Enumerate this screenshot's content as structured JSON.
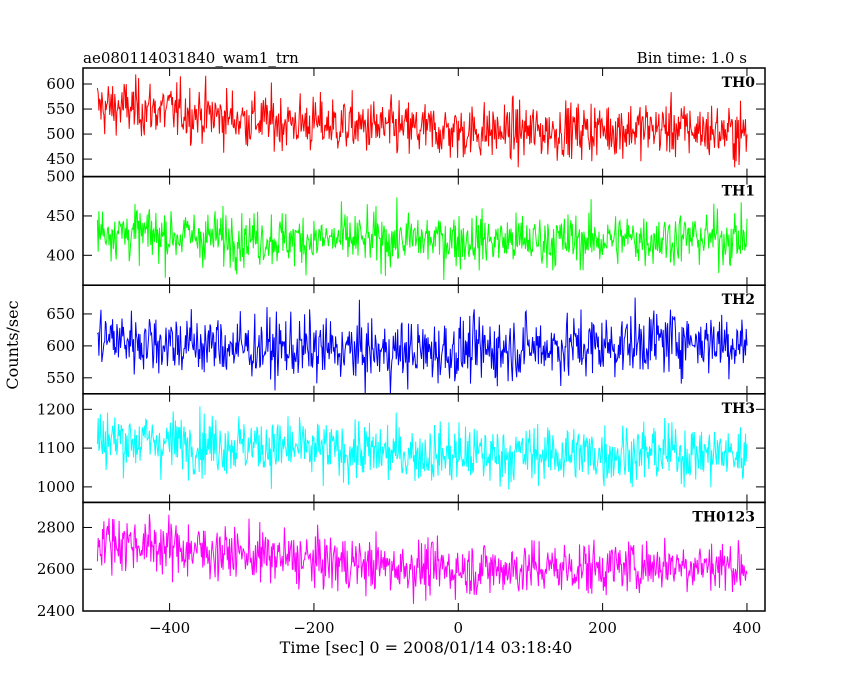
{
  "header": {
    "left_title": "ae080114031840_wam1_trn",
    "right_title": "Bin time: 1.0 s"
  },
  "chart_data": {
    "type": "line",
    "xlabel": "Time [sec] 0 = 2008/01/14 03:18:40",
    "ylabel": "Counts/sec",
    "xlim": [
      -520,
      425
    ],
    "x_ticks": [
      -400,
      -200,
      0,
      200,
      400
    ],
    "x_range": [
      -500,
      400
    ],
    "panels": [
      {
        "name": "TH0",
        "color": "#ff0000",
        "ylim": [
          415,
          632
        ],
        "y_ticks": [
          450,
          500,
          550,
          600
        ],
        "trend": [
          [
            -500,
            555
          ],
          [
            -400,
            548
          ],
          [
            -300,
            530
          ],
          [
            -200,
            520
          ],
          [
            -100,
            512
          ],
          [
            0,
            505
          ],
          [
            100,
            505
          ],
          [
            200,
            510
          ],
          [
            300,
            512
          ],
          [
            400,
            500
          ]
        ],
        "noise": 28
      },
      {
        "name": "TH1",
        "color": "#00ff00",
        "ylim": [
          362,
          500
        ],
        "y_ticks": [
          400,
          450,
          500
        ],
        "trend": [
          [
            -500,
            432
          ],
          [
            -400,
            425
          ],
          [
            -300,
            422
          ],
          [
            -200,
            420
          ],
          [
            -100,
            420
          ],
          [
            0,
            420
          ],
          [
            100,
            418
          ],
          [
            200,
            420
          ],
          [
            300,
            422
          ],
          [
            400,
            422
          ]
        ],
        "noise": 17
      },
      {
        "name": "TH2",
        "color": "#0000ff",
        "ylim": [
          525,
          695
        ],
        "y_ticks": [
          550,
          600,
          650
        ],
        "trend": [
          [
            -500,
            612
          ],
          [
            -400,
            605
          ],
          [
            -300,
            598
          ],
          [
            -200,
            595
          ],
          [
            -100,
            590
          ],
          [
            0,
            592
          ],
          [
            100,
            598
          ],
          [
            200,
            600
          ],
          [
            300,
            610
          ],
          [
            400,
            605
          ]
        ],
        "noise": 25
      },
      {
        "name": "TH3",
        "color": "#00ffff",
        "ylim": [
          960,
          1240
        ],
        "y_ticks": [
          1000,
          1100,
          1200
        ],
        "trend": [
          [
            -500,
            1125
          ],
          [
            -400,
            1115
          ],
          [
            -300,
            1108
          ],
          [
            -200,
            1095
          ],
          [
            -100,
            1088
          ],
          [
            0,
            1082
          ],
          [
            100,
            1085
          ],
          [
            200,
            1085
          ],
          [
            300,
            1088
          ],
          [
            400,
            1082
          ]
        ],
        "noise": 38
      },
      {
        "name": "TH0123",
        "color": "#ff00ff",
        "ylim": [
          2400,
          2920
        ],
        "y_ticks": [
          2400,
          2600,
          2800
        ],
        "trend": [
          [
            -500,
            2745
          ],
          [
            -400,
            2705
          ],
          [
            -300,
            2672
          ],
          [
            -200,
            2640
          ],
          [
            -100,
            2615
          ],
          [
            0,
            2600
          ],
          [
            100,
            2605
          ],
          [
            200,
            2608
          ],
          [
            300,
            2625
          ],
          [
            400,
            2612
          ]
        ],
        "noise": 65
      }
    ]
  }
}
